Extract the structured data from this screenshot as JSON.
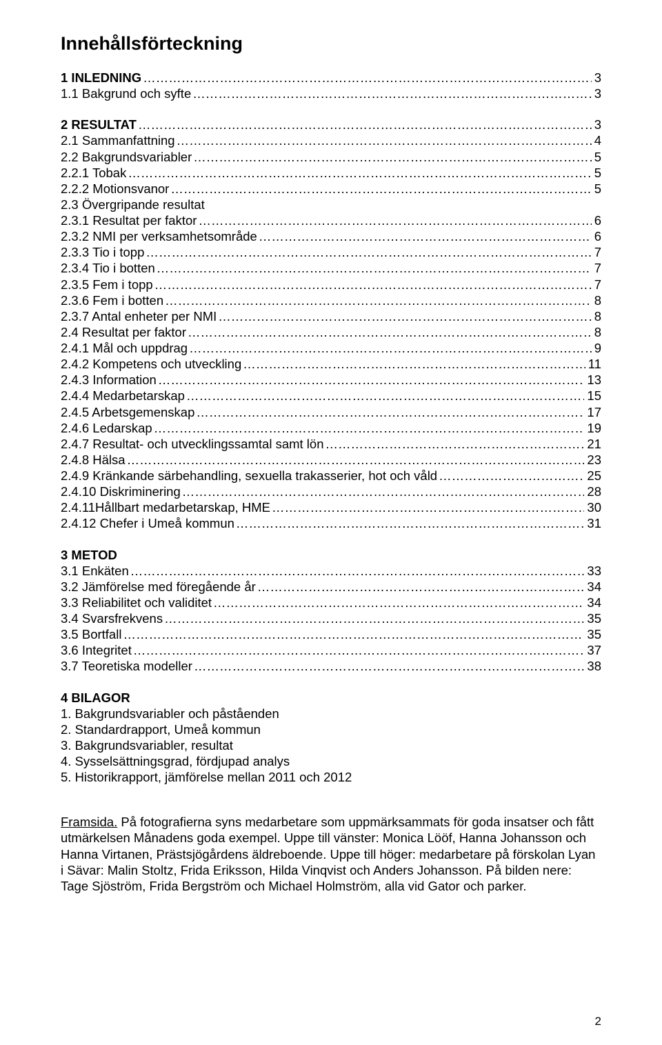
{
  "title": "Innehållsförteckning",
  "sections": [
    {
      "head": "1 INLEDNING",
      "head_page": "3",
      "items": [
        {
          "label": "1.1 Bakgrund och syfte",
          "page": "3"
        }
      ]
    },
    {
      "head": "2 RESULTAT",
      "head_page": "3",
      "items": [
        {
          "label": "2.1 Sammanfattning",
          "page": "4"
        },
        {
          "label": "2.2 Bakgrundsvariabler",
          "page": "5"
        },
        {
          "label": "2.2.1 Tobak",
          "page": "5"
        },
        {
          "label": "2.2.2 Motionsvanor",
          "page": "5"
        },
        {
          "label": "2.3 Övergripande resultat",
          "page": ""
        },
        {
          "label": "2.3.1 Resultat per faktor",
          "page": "6"
        },
        {
          "label": "2.3.2 NMI per verksamhetsområde",
          "page": "6"
        },
        {
          "label": "2.3.3 Tio i topp",
          "page": "7"
        },
        {
          "label": "2.3.4 Tio i botten",
          "page": "7"
        },
        {
          "label": "2.3.5 Fem i topp",
          "page": "7"
        },
        {
          "label": "2.3.6 Fem i botten",
          "page": "8"
        },
        {
          "label": "2.3.7 Antal enheter per NMI",
          "page": "8"
        },
        {
          "label": "2.4 Resultat per faktor",
          "page": "8"
        },
        {
          "label": "2.4.1 Mål och uppdrag",
          "page": "9"
        },
        {
          "label": "2.4.2 Kompetens och utveckling",
          "page": "11"
        },
        {
          "label": "2.4.3 Information",
          "page": "13"
        },
        {
          "label": "2.4.4 Medarbetarskap",
          "page": "15"
        },
        {
          "label": "2.4.5 Arbetsgemenskap",
          "page": "17"
        },
        {
          "label": "2.4.6 Ledarskap",
          "page": "19"
        },
        {
          "label": "2.4.7 Resultat- och utvecklingssamtal samt lön",
          "page": "21"
        },
        {
          "label": "2.4.8 Hälsa",
          "page": "23"
        },
        {
          "label": "2.4.9 Kränkande särbehandling, sexuella trakasserier, hot och våld",
          "page": "25"
        },
        {
          "label": "2.4.10 Diskriminering",
          "page": "28"
        },
        {
          "label": "2.4.11Hållbart medarbetarskap, HME",
          "page": "30"
        },
        {
          "label": "2.4.12 Chefer i Umeå kommun",
          "page": "31"
        }
      ]
    },
    {
      "head": "3 METOD",
      "head_page": "",
      "items": [
        {
          "label": "3.1 Enkäten",
          "page": "33"
        },
        {
          "label": "3.2 Jämförelse med föregående år",
          "page": "34"
        },
        {
          "label": "3.3 Reliabilitet och validitet",
          "page": "34"
        },
        {
          "label": "3.4 Svarsfrekvens",
          "page": "35"
        },
        {
          "label": "3.5 Bortfall",
          "page": "35"
        },
        {
          "label": "3.6 Integritet",
          "page": "37"
        },
        {
          "label": "3.7 Teoretiska modeller",
          "page": "38"
        }
      ]
    }
  ],
  "attachments": {
    "head": "4 BILAGOR",
    "items": [
      "1. Bakgrundsvariabler och påståenden",
      "2. Standardrapport, Umeå kommun",
      "3. Bakgrundsvariabler, resultat",
      "4. Sysselsättningsgrad, fördjupad analys",
      "5. Historikrapport, jämförelse mellan 2011 och 2012"
    ]
  },
  "caption": {
    "lead": "Framsida.",
    "text": " På fotografierna syns medarbetare som uppmärksammats för goda insatser och fått utmärkelsen Månadens goda exempel. Uppe till vänster: Monica Lööf, Hanna Johansson och Hanna Virtanen, Prästsjögårdens äldreboende. Uppe till höger: medarbetare på förskolan Lyan i Sävar: Malin Stoltz, Frida Eriksson, Hilda Vinqvist och Anders Johansson. På bilden nere: Tage Sjöström, Frida Bergström och Michael Holmström, alla vid Gator och parker."
  },
  "page_number": "2"
}
